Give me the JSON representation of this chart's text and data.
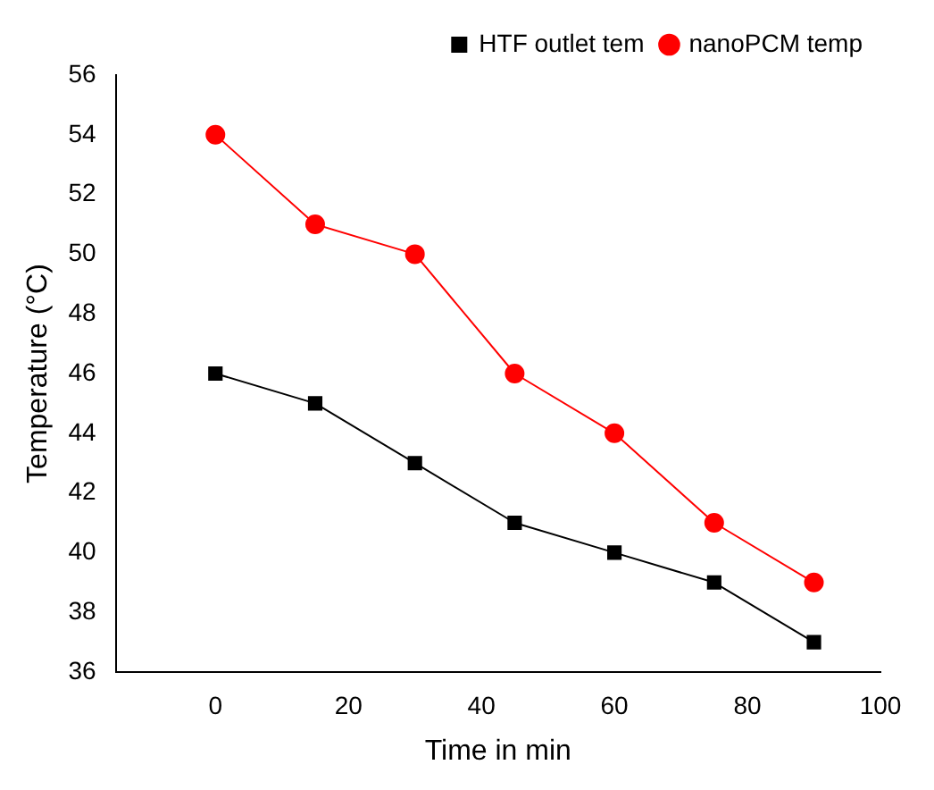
{
  "chart_data": {
    "type": "line",
    "xlabel": "Time in min",
    "ylabel": "Temperature (°C)",
    "x": [
      0,
      15,
      30,
      45,
      60,
      75,
      90
    ],
    "series": [
      {
        "name": "HTF outlet tem",
        "color": "#000000",
        "values": [
          46,
          45,
          43,
          41,
          40,
          39,
          37
        ],
        "marker": "square"
      },
      {
        "name": "nanoPCM temp",
        "color": "#ff0000",
        "values": [
          54,
          51,
          50,
          46,
          44,
          41,
          39
        ],
        "marker": "circle"
      }
    ],
    "xlim": [
      -15,
      100
    ],
    "xticks": [
      0,
      20,
      40,
      60,
      80,
      100
    ],
    "ylim": [
      36,
      56
    ],
    "yticks": [
      36,
      38,
      40,
      42,
      44,
      46,
      48,
      50,
      52,
      54,
      56
    ],
    "grid": false,
    "legend": "top right",
    "line_style": "solid"
  }
}
